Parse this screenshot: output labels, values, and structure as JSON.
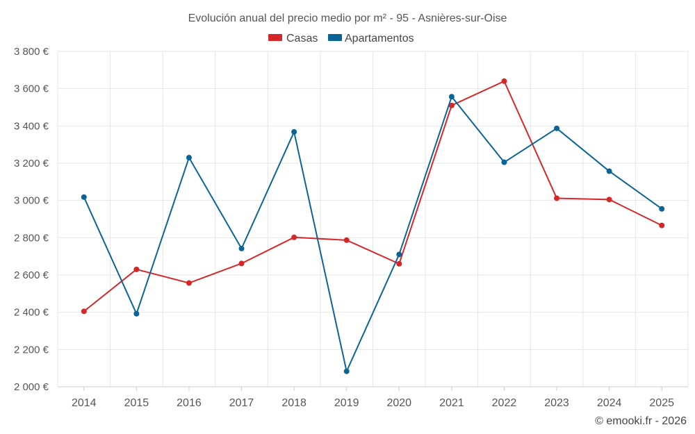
{
  "chart_data": {
    "type": "line",
    "title": "Evolución anual del precio medio por m² - 95 - Asnières-sur-Oise",
    "categories": [
      "2014",
      "2015",
      "2016",
      "2017",
      "2018",
      "2019",
      "2020",
      "2021",
      "2022",
      "2023",
      "2024",
      "2025"
    ],
    "series": [
      {
        "name": "Casas",
        "color": "#d62728",
        "values": [
          2405,
          2630,
          2557,
          2662,
          2802,
          2787,
          2660,
          3510,
          3640,
          3012,
          3005,
          2866
        ]
      },
      {
        "name": "Apartamentos",
        "color": "#0a6496",
        "values": [
          3018,
          2392,
          3230,
          2742,
          3368,
          2083,
          2710,
          3557,
          3205,
          3387,
          3157,
          2955
        ]
      }
    ],
    "ylim": [
      2000,
      3800
    ],
    "yticks": [
      2000,
      2200,
      2400,
      2600,
      2800,
      3000,
      3200,
      3400,
      3600,
      3800
    ],
    "ytick_labels": [
      "2 000 €",
      "2 200 €",
      "2 400 €",
      "2 600 €",
      "2 800 €",
      "3 000 €",
      "3 200 €",
      "3 400 €",
      "3 600 €",
      "3 800 €"
    ],
    "xlabel": "",
    "ylabel": "",
    "grid": true,
    "legend": "top-center"
  },
  "credit": "© emooki.fr - 2026"
}
